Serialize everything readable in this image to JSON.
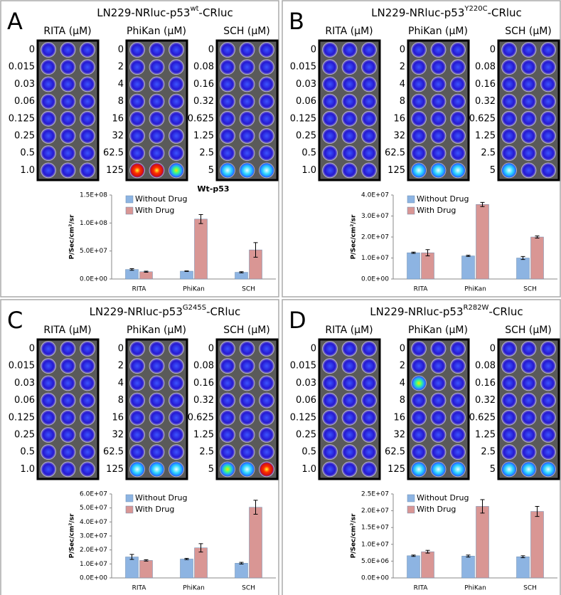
{
  "panels": [
    {
      "letter": "A",
      "title": {
        "main": "LN229-NRluc-p53",
        "sup": "wt",
        "end": "-CRluc"
      },
      "plates": [
        {
          "label": "RITA (μM)",
          "rows": [
            "0",
            "0.015",
            "0.03",
            "0.06",
            "0.125",
            "0.25",
            "0.5",
            "1.0"
          ]
        },
        {
          "label": "PhiKan (μM)",
          "rows": [
            "0",
            "2",
            "4",
            "8",
            "16",
            "32",
            "62.5",
            "125"
          ]
        },
        {
          "label": "SCH (μM)",
          "rows": [
            "0",
            "0.08",
            "0.16",
            "0.32",
            "0.625",
            "1.25",
            "2.5",
            "5"
          ]
        }
      ]
    },
    {
      "letter": "B",
      "title": {
        "main": "LN229-NRluc-p53",
        "sup": "Y220C",
        "end": "-CRluc"
      },
      "plates": [
        {
          "label": "RITA (μM)",
          "rows": [
            "0",
            "0.015",
            "0.03",
            "0.06",
            "0.125",
            "0.25",
            "0.5",
            "1.0"
          ]
        },
        {
          "label": "PhiKan (μM)",
          "rows": [
            "0",
            "2",
            "4",
            "8",
            "16",
            "32",
            "62.5",
            "125"
          ]
        },
        {
          "label": "SCH (μM)",
          "rows": [
            "0",
            "0.08",
            "0.16",
            "0.32",
            "0.625",
            "1.25",
            "2.5",
            "5"
          ]
        }
      ]
    },
    {
      "letter": "C",
      "title": {
        "main": "LN229-NRluc-p53",
        "sup": "G245S",
        "end": "-CRluc"
      },
      "plates": [
        {
          "label": "RITA (μM)",
          "rows": [
            "0",
            "0.015",
            "0.03",
            "0.06",
            "0.125",
            "0.25",
            "0.5",
            "1.0"
          ]
        },
        {
          "label": "PhiKan (μM)",
          "rows": [
            "0",
            "2",
            "4",
            "8",
            "16",
            "32",
            "62.5",
            "125"
          ]
        },
        {
          "label": "SCH (μM)",
          "rows": [
            "0",
            "0.08",
            "0.16",
            "0.32",
            "0.625",
            "1.25",
            "2.5",
            "5"
          ]
        }
      ]
    },
    {
      "letter": "D",
      "title": {
        "main": "LN229-NRluc-p53",
        "sup": "R282W",
        "end": "-CRluc"
      },
      "plates": [
        {
          "label": "RITA (μM)",
          "rows": [
            "0",
            "0.015",
            "0.03",
            "0.06",
            "0.125",
            "0.25",
            "0.5",
            "1.0"
          ]
        },
        {
          "label": "PhiKan (μM)",
          "rows": [
            "0",
            "2",
            "4",
            "8",
            "16",
            "32",
            "62.5",
            "125"
          ]
        },
        {
          "label": "SCH (μM)",
          "rows": [
            "0",
            "0.08",
            "0.16",
            "0.32",
            "0.625",
            "1.25",
            "2.5",
            "5"
          ]
        }
      ]
    }
  ],
  "chart_data": [
    {
      "type": "bar",
      "title": "Wt-p53",
      "ylabel": "P/Sec/cm²/sr",
      "categories": [
        "RITA",
        "PhiKan",
        "SCH"
      ],
      "legend": "top-left",
      "series": [
        {
          "name": "Without Drug",
          "color": "#8db4e2",
          "values": [
            17000000,
            14000000,
            12000000
          ],
          "errors": [
            1500000,
            500000,
            1000000
          ]
        },
        {
          "name": "With Drug",
          "color": "#d99694",
          "values": [
            13000000,
            107000000,
            52000000
          ],
          "errors": [
            1000000,
            8000000,
            13000000
          ]
        }
      ],
      "ylim": [
        0,
        150000000
      ],
      "yticks": [
        {
          "value": 0,
          "label": "0.0E+00"
        },
        {
          "value": 50000000,
          "label": "5.0E+07"
        },
        {
          "value": 100000000,
          "label": "1.0E+08"
        },
        {
          "value": 150000000,
          "label": "1.5E+08"
        }
      ]
    },
    {
      "type": "bar",
      "ylabel": "P/Sec/cm²/sr",
      "categories": [
        "RITA",
        "PhiKan",
        "SCH"
      ],
      "legend": "top-left",
      "series": [
        {
          "name": "Without Drug",
          "color": "#8db4e2",
          "values": [
            12500000,
            11000000,
            10000000
          ],
          "errors": [
            300000,
            300000,
            700000
          ]
        },
        {
          "name": "With Drug",
          "color": "#d99694",
          "values": [
            12500000,
            35500000,
            20000000
          ],
          "errors": [
            1500000,
            1000000,
            500000
          ]
        }
      ],
      "ylim": [
        0,
        40000000
      ],
      "yticks": [
        {
          "value": 0,
          "label": "0.0E+00"
        },
        {
          "value": 10000000,
          "label": "1.0E+07"
        },
        {
          "value": 20000000,
          "label": "2.0E+07"
        },
        {
          "value": 30000000,
          "label": "3.0E+07"
        },
        {
          "value": 40000000,
          "label": "4.0E+07"
        }
      ]
    },
    {
      "type": "bar",
      "ylabel": "P/Sec/cm²/sr",
      "categories": [
        "RITA",
        "PhiKan",
        "SCH"
      ],
      "legend": "top-left",
      "series": [
        {
          "name": "Without Drug",
          "color": "#8db4e2",
          "values": [
            15000000,
            13500000,
            10500000
          ],
          "errors": [
            1800000,
            500000,
            600000
          ]
        },
        {
          "name": "With Drug",
          "color": "#d99694",
          "values": [
            12500000,
            21500000,
            50500000
          ],
          "errors": [
            500000,
            3000000,
            5000000
          ]
        }
      ],
      "ylim": [
        0,
        60000000
      ],
      "yticks": [
        {
          "value": 0,
          "label": "0.0E+00"
        },
        {
          "value": 10000000,
          "label": "1.0E+07"
        },
        {
          "value": 20000000,
          "label": "2.0E+07"
        },
        {
          "value": 30000000,
          "label": "3.0E+07"
        },
        {
          "value": 40000000,
          "label": "4.0E+07"
        },
        {
          "value": 50000000,
          "label": "5.0E+07"
        },
        {
          "value": 60000000,
          "label": "6.0E+07"
        }
      ]
    },
    {
      "type": "bar",
      "ylabel": "P/Sec/cm²/sr",
      "categories": [
        "RITA",
        "PhiKan",
        "SCH"
      ],
      "legend": "top-left",
      "series": [
        {
          "name": "Without Drug",
          "color": "#8db4e2",
          "values": [
            6600000,
            6500000,
            6300000
          ],
          "errors": [
            200000,
            300000,
            300000
          ]
        },
        {
          "name": "With Drug",
          "color": "#d99694",
          "values": [
            7800000,
            21300000,
            19800000
          ],
          "errors": [
            400000,
            2000000,
            1500000
          ]
        }
      ],
      "ylim": [
        0,
        25000000
      ],
      "yticks": [
        {
          "value": 0,
          "label": "0.0E+00"
        },
        {
          "value": 5000000,
          "label": "5.0E+06"
        },
        {
          "value": 10000000,
          "label": "1.0E+07"
        },
        {
          "value": 15000000,
          "label": "1.5E+07"
        },
        {
          "value": 20000000,
          "label": "2.0E+07"
        },
        {
          "value": 25000000,
          "label": "2.5E+07"
        }
      ]
    }
  ]
}
